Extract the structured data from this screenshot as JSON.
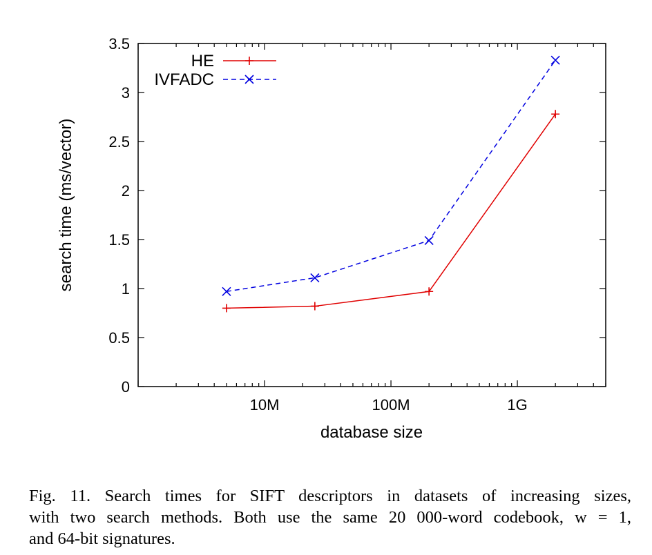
{
  "chart_data": {
    "type": "line",
    "title": "",
    "xlabel": "database size",
    "ylabel": "search time (ms/vector)",
    "x_scale": "log",
    "xlim": [
      1000000,
      5000000000
    ],
    "ylim": [
      0,
      3.5
    ],
    "x_ticks": [
      {
        "value": 10000000,
        "label": "10M"
      },
      {
        "value": 100000000,
        "label": "100M"
      },
      {
        "value": 1000000000,
        "label": "1G"
      }
    ],
    "y_ticks": [
      {
        "value": 0,
        "label": "0"
      },
      {
        "value": 0.5,
        "label": "0.5"
      },
      {
        "value": 1,
        "label": "1"
      },
      {
        "value": 1.5,
        "label": "1.5"
      },
      {
        "value": 2,
        "label": "2"
      },
      {
        "value": 2.5,
        "label": "2.5"
      },
      {
        "value": 3,
        "label": "3"
      },
      {
        "value": 3.5,
        "label": "3.5"
      }
    ],
    "x": [
      5000000,
      25000000,
      200000000,
      2000000000
    ],
    "series": [
      {
        "name": "HE",
        "values": [
          0.8,
          0.82,
          0.97,
          2.78
        ],
        "color": "#e00000",
        "line": "solid",
        "marker": "plus"
      },
      {
        "name": "IVFADC",
        "values": [
          0.97,
          1.11,
          1.49,
          3.33
        ],
        "color": "#0000e0",
        "line": "dashed",
        "marker": "cross"
      }
    ],
    "legend_position": "top-left",
    "grid": false
  },
  "caption": {
    "lines": [
      "Fig. 11.    Search times for SIFT descriptors in datasets of increasing sizes,",
      "with two search methods. Both use the same 20 000-word codebook, w = 1,",
      "and 64-bit signatures."
    ]
  }
}
